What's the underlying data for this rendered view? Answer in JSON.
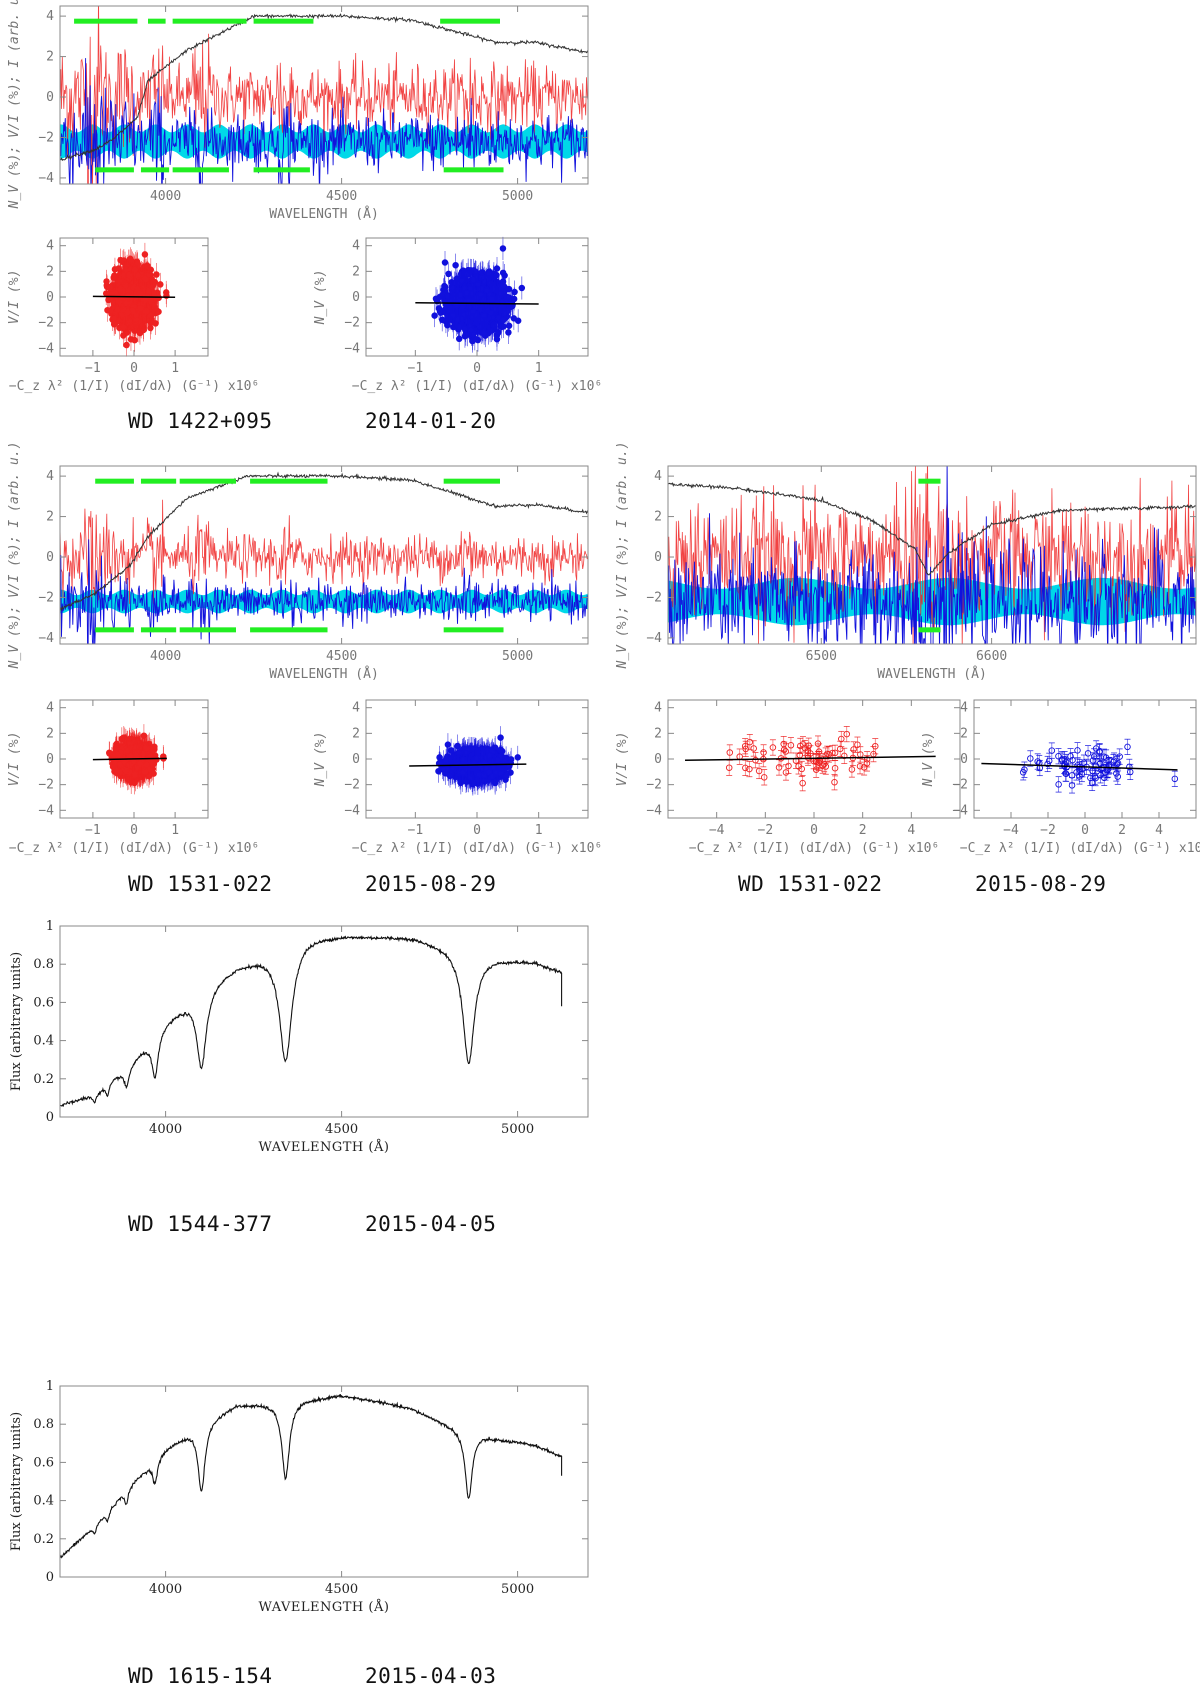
{
  "colors": {
    "frame": "#888888",
    "flux": "#333333",
    "stokes_v": "#ee2222",
    "null": "#1111dd",
    "null_band": "#00d8e8",
    "mask": "#22ee22",
    "fit": "#000000"
  },
  "labels": {
    "wavelength": "WAVELENGTH (Å)",
    "spec_y": "N_V (%); V/I (%); I (arb. u.)",
    "v_y": "V/I (%)",
    "n_y": "N_V (%)",
    "cz_x": "−C_z λ² (1/I) (dI/dλ) (G⁻¹) x10⁶",
    "flux_y": "Flux (arbitrary units)"
  },
  "captions": {
    "c1_star": "WD 1422+095",
    "c1_date": "2014-01-20",
    "c2_star": "WD 1531-022",
    "c2_date": "2015-08-29",
    "c3_star": "WD 1531-022",
    "c3_date": "2015-08-29",
    "c4_star": "WD 1544-377",
    "c4_date": "2015-04-05",
    "c5_star": "WD 1615-154",
    "c5_date": "2015-04-03"
  },
  "chart_data": [
    {
      "id": "spec1",
      "type": "line",
      "star": "WD 1422+095",
      "date": "2014-01-20",
      "xlabel": "WAVELENGTH (Å)",
      "ylabel": "N_V (%); V/I (%); I (arb. u.)",
      "xlim": [
        3700,
        5200
      ],
      "ylim": [
        -4.3,
        4.5
      ],
      "xticks": [
        4000,
        4500,
        5000
      ],
      "yticks": [
        -4,
        -2,
        0,
        2,
        4
      ],
      "lines_angstrom": [
        3798,
        3835,
        3889,
        3970,
        4102,
        4341,
        4861
      ],
      "flux_shape": [
        [
          3700,
          -3.1
        ],
        [
          3800,
          -2.6
        ],
        [
          3850,
          -2.1
        ],
        [
          3920,
          -1.0
        ],
        [
          3950,
          0.8
        ],
        [
          4060,
          2.3
        ],
        [
          4250,
          4.0
        ],
        [
          4500,
          4.0
        ],
        [
          4700,
          3.8
        ],
        [
          4940,
          2.7
        ],
        [
          5050,
          2.7
        ],
        [
          5200,
          2.2
        ]
      ],
      "mask_top": [
        [
          3740,
          3920
        ],
        [
          3950,
          4000
        ],
        [
          4020,
          4230
        ],
        [
          4250,
          4420
        ],
        [
          4780,
          4950
        ]
      ],
      "mask_bottom": [
        [
          3800,
          3910
        ],
        [
          3930,
          4010
        ],
        [
          4020,
          4180
        ],
        [
          4250,
          4410
        ],
        [
          4790,
          4960
        ]
      ],
      "v_level": 0.0,
      "v_noise": 0.8,
      "null_level": -2.2,
      "null_noise": 0.7,
      "band_half_width": 0.65
    },
    {
      "id": "corr1v",
      "type": "scatter",
      "series": "V/I",
      "ylabel": "V/I (%)",
      "xlabel": "−C_z λ² (1/I) (dI/dλ) (G⁻¹) x10⁶",
      "xlim": [
        -1.8,
        1.8
      ],
      "ylim": [
        -4.6,
        4.6
      ],
      "xticks": [
        -1,
        0,
        1
      ],
      "yticks": [
        -4,
        -2,
        0,
        2,
        4
      ],
      "points": 1500,
      "x_sigma": 0.22,
      "y_sigma": 1.0,
      "fit": {
        "x0": -1.0,
        "y0": 0.05,
        "x1": 1.0,
        "y1": -0.02
      }
    },
    {
      "id": "corr1n",
      "type": "scatter",
      "series": "N_V",
      "ylabel": "N_V (%)",
      "xlabel": "−C_z λ² (1/I) (dI/dλ) (G⁻¹) x10⁶",
      "xlim": [
        -1.8,
        1.8
      ],
      "ylim": [
        -4.6,
        4.6
      ],
      "xticks": [
        -1,
        0,
        1
      ],
      "yticks": [
        -4,
        -2,
        0,
        2,
        4
      ],
      "points": 1500,
      "x_sigma": 0.22,
      "y_sigma": 1.0,
      "fit": {
        "x0": -1.0,
        "y0": -0.45,
        "x1": 1.0,
        "y1": -0.55
      }
    },
    {
      "id": "spec2",
      "type": "line",
      "star": "WD 1531-022",
      "date": "2015-08-29",
      "xlabel": "WAVELENGTH (Å)",
      "ylabel": "N_V (%); V/I (%); I (arb. u.)",
      "xlim": [
        3700,
        5200
      ],
      "ylim": [
        -4.3,
        4.5
      ],
      "xticks": [
        4000,
        4500,
        5000
      ],
      "yticks": [
        -4,
        -2,
        0,
        2,
        4
      ],
      "lines_angstrom": [
        3798,
        3835,
        3889,
        3970,
        4102,
        4341,
        4861
      ],
      "flux_shape": [
        [
          3700,
          -2.6
        ],
        [
          3800,
          -1.8
        ],
        [
          3900,
          -0.4
        ],
        [
          3950,
          1.0
        ],
        [
          4060,
          2.9
        ],
        [
          4230,
          4.0
        ],
        [
          4500,
          4.0
        ],
        [
          4700,
          3.8
        ],
        [
          4940,
          2.5
        ],
        [
          5050,
          2.6
        ],
        [
          5200,
          2.2
        ]
      ],
      "mask_top": [
        [
          3800,
          3910
        ],
        [
          3930,
          4030
        ],
        [
          4040,
          4200
        ],
        [
          4240,
          4460
        ],
        [
          4790,
          4950
        ]
      ],
      "mask_bottom": [
        [
          3800,
          3910
        ],
        [
          3930,
          4030
        ],
        [
          4040,
          4200
        ],
        [
          4240,
          4460
        ],
        [
          4790,
          4960
        ]
      ],
      "v_level": 0.0,
      "v_noise": 0.55,
      "null_level": -2.2,
      "null_noise": 0.45,
      "band_half_width": 0.45
    },
    {
      "id": "spec3",
      "type": "line",
      "star": "WD 1531-022",
      "date": "2015-08-29",
      "xlabel": "WAVELENGTH (Å)",
      "ylabel": "N_V (%); V/I (%); I (arb. u.)",
      "xlim": [
        6410,
        6720
      ],
      "ylim": [
        -4.3,
        4.5
      ],
      "xticks": [
        6500,
        6600
      ],
      "yticks": [
        -4,
        -2,
        0,
        2,
        4
      ],
      "lines_angstrom": [
        6563
      ],
      "flux_shape": [
        [
          6410,
          3.6
        ],
        [
          6450,
          3.4
        ],
        [
          6500,
          2.8
        ],
        [
          6530,
          1.8
        ],
        [
          6555,
          0.4
        ],
        [
          6563,
          -0.9
        ],
        [
          6575,
          0.2
        ],
        [
          6600,
          1.6
        ],
        [
          6640,
          2.3
        ],
        [
          6720,
          2.5
        ]
      ],
      "mask_top": [
        [
          6557,
          6570
        ]
      ],
      "mask_bottom": [
        [
          6557,
          6570
        ]
      ],
      "v_level": 0.0,
      "v_noise": 1.2,
      "null_level": -2.2,
      "null_noise": 1.1,
      "band_half_width": 0.9
    },
    {
      "id": "corr3v",
      "type": "scatter",
      "series": "V/I",
      "ylabel": "V/I (%)",
      "xlabel": "−C_z λ² (1/I) (dI/dλ) (G⁻¹) x10⁶",
      "xlim": [
        -6,
        6
      ],
      "ylim": [
        -4.6,
        4.6
      ],
      "xticks": [
        -4,
        -2,
        0,
        2,
        4
      ],
      "yticks": [
        -4,
        -2,
        0,
        2,
        4
      ],
      "points": 70,
      "x_sigma": 1.6,
      "y_sigma": 0.8,
      "fit": {
        "x0": -5.3,
        "y0": -0.1,
        "x1": 5.0,
        "y1": 0.2
      }
    },
    {
      "id": "corr3n",
      "type": "scatter",
      "series": "N_V",
      "ylabel": "N_V (%)",
      "xlabel": "−C_z λ² (1/I) (dI/dλ) (G⁻¹) x10⁶",
      "xlim": [
        -6,
        6
      ],
      "ylim": [
        -4.6,
        4.6
      ],
      "xticks": [
        -4,
        -2,
        0,
        2,
        4
      ],
      "yticks": [
        -4,
        -2,
        0,
        2,
        4
      ],
      "points": 70,
      "x_sigma": 1.6,
      "y_sigma": 0.7,
      "fit": {
        "x0": -5.6,
        "y0": -0.35,
        "x1": 5.0,
        "y1": -0.85
      }
    },
    {
      "id": "corr2v",
      "type": "scatter",
      "series": "V/I",
      "ylabel": "V/I (%)",
      "xlabel": "−C_z λ² (1/I) (dI/dλ) (G⁻¹) x10⁶",
      "xlim": [
        -1.8,
        1.8
      ],
      "ylim": [
        -4.6,
        4.6
      ],
      "xticks": [
        -1,
        0,
        1
      ],
      "yticks": [
        -4,
        -2,
        0,
        2,
        4
      ],
      "points": 1500,
      "x_sigma": 0.2,
      "y_sigma": 0.55,
      "fit": {
        "x0": -1.0,
        "y0": -0.05,
        "x1": 0.8,
        "y1": 0.05
      }
    },
    {
      "id": "corr2n",
      "type": "scatter",
      "series": "N_V",
      "ylabel": "N_V (%)",
      "xlabel": "−C_z λ² (1/I) (dI/dλ) (G⁻¹) x10⁶",
      "xlim": [
        -1.8,
        1.8
      ],
      "ylim": [
        -4.6,
        4.6
      ],
      "xticks": [
        -1,
        0,
        1
      ],
      "yticks": [
        -4,
        -2,
        0,
        2,
        4
      ],
      "points": 1500,
      "x_sigma": 0.2,
      "y_sigma": 0.5,
      "fit": {
        "x0": -1.1,
        "y0": -0.55,
        "x1": 0.8,
        "y1": -0.4
      }
    },
    {
      "id": "flux4",
      "type": "line",
      "star": "WD 1544-377",
      "date": "2015-04-05",
      "xlabel": "WAVELENGTH (Å)",
      "ylabel": "Flux (arbitrary units)",
      "xlim": [
        3700,
        5200
      ],
      "ylim": [
        0,
        1
      ],
      "xticks": [
        4000,
        4500,
        5000
      ],
      "yticks": [
        0,
        0.2,
        0.4,
        0.6,
        0.8,
        1
      ],
      "x_end": 5125,
      "continuum": [
        [
          3700,
          0.06
        ],
        [
          3800,
          0.12
        ],
        [
          3900,
          0.28
        ],
        [
          4000,
          0.5
        ],
        [
          4100,
          0.66
        ],
        [
          4200,
          0.79
        ],
        [
          4300,
          0.86
        ],
        [
          4400,
          0.94
        ],
        [
          4500,
          0.95
        ],
        [
          4700,
          0.94
        ],
        [
          4800,
          0.89
        ],
        [
          4860,
          0.84
        ],
        [
          4950,
          0.83
        ],
        [
          5050,
          0.81
        ],
        [
          5125,
          0.76
        ]
      ],
      "absorption": [
        {
          "center": 3798,
          "depth": 0.04,
          "width": 5
        },
        {
          "center": 3835,
          "depth": 0.06,
          "width": 6
        },
        {
          "center": 3889,
          "depth": 0.1,
          "width": 8
        },
        {
          "center": 3970,
          "depth": 0.22,
          "width": 11
        },
        {
          "center": 4102,
          "depth": 0.4,
          "width": 16
        },
        {
          "center": 4341,
          "depth": 0.6,
          "width": 21
        },
        {
          "center": 4861,
          "depth": 0.56,
          "width": 19
        }
      ],
      "tail_drop": 0.58
    },
    {
      "id": "flux5",
      "type": "line",
      "star": "WD 1615-154",
      "date": "2015-04-03",
      "xlabel": "WAVELENGTH (Å)",
      "ylabel": "Flux (arbitrary units)",
      "xlim": [
        3700,
        5200
      ],
      "ylim": [
        0,
        1
      ],
      "xticks": [
        4000,
        4500,
        5000
      ],
      "yticks": [
        0,
        0.2,
        0.4,
        0.6,
        0.8,
        1
      ],
      "x_end": 5125,
      "continuum": [
        [
          3700,
          0.1
        ],
        [
          3800,
          0.27
        ],
        [
          3900,
          0.48
        ],
        [
          4000,
          0.67
        ],
        [
          4100,
          0.8
        ],
        [
          4200,
          0.9
        ],
        [
          4300,
          0.91
        ],
        [
          4400,
          0.93
        ],
        [
          4500,
          0.95
        ],
        [
          4600,
          0.92
        ],
        [
          4700,
          0.88
        ],
        [
          4800,
          0.8
        ],
        [
          4860,
          0.76
        ],
        [
          4950,
          0.72
        ],
        [
          5050,
          0.69
        ],
        [
          5125,
          0.63
        ]
      ],
      "absorption": [
        {
          "center": 3798,
          "depth": 0.04,
          "width": 5
        },
        {
          "center": 3835,
          "depth": 0.05,
          "width": 5
        },
        {
          "center": 3889,
          "depth": 0.07,
          "width": 6
        },
        {
          "center": 3970,
          "depth": 0.12,
          "width": 8
        },
        {
          "center": 4102,
          "depth": 0.35,
          "width": 12
        },
        {
          "center": 4341,
          "depth": 0.4,
          "width": 13
        },
        {
          "center": 4861,
          "depth": 0.35,
          "width": 12
        }
      ],
      "tail_drop": 0.53
    }
  ]
}
